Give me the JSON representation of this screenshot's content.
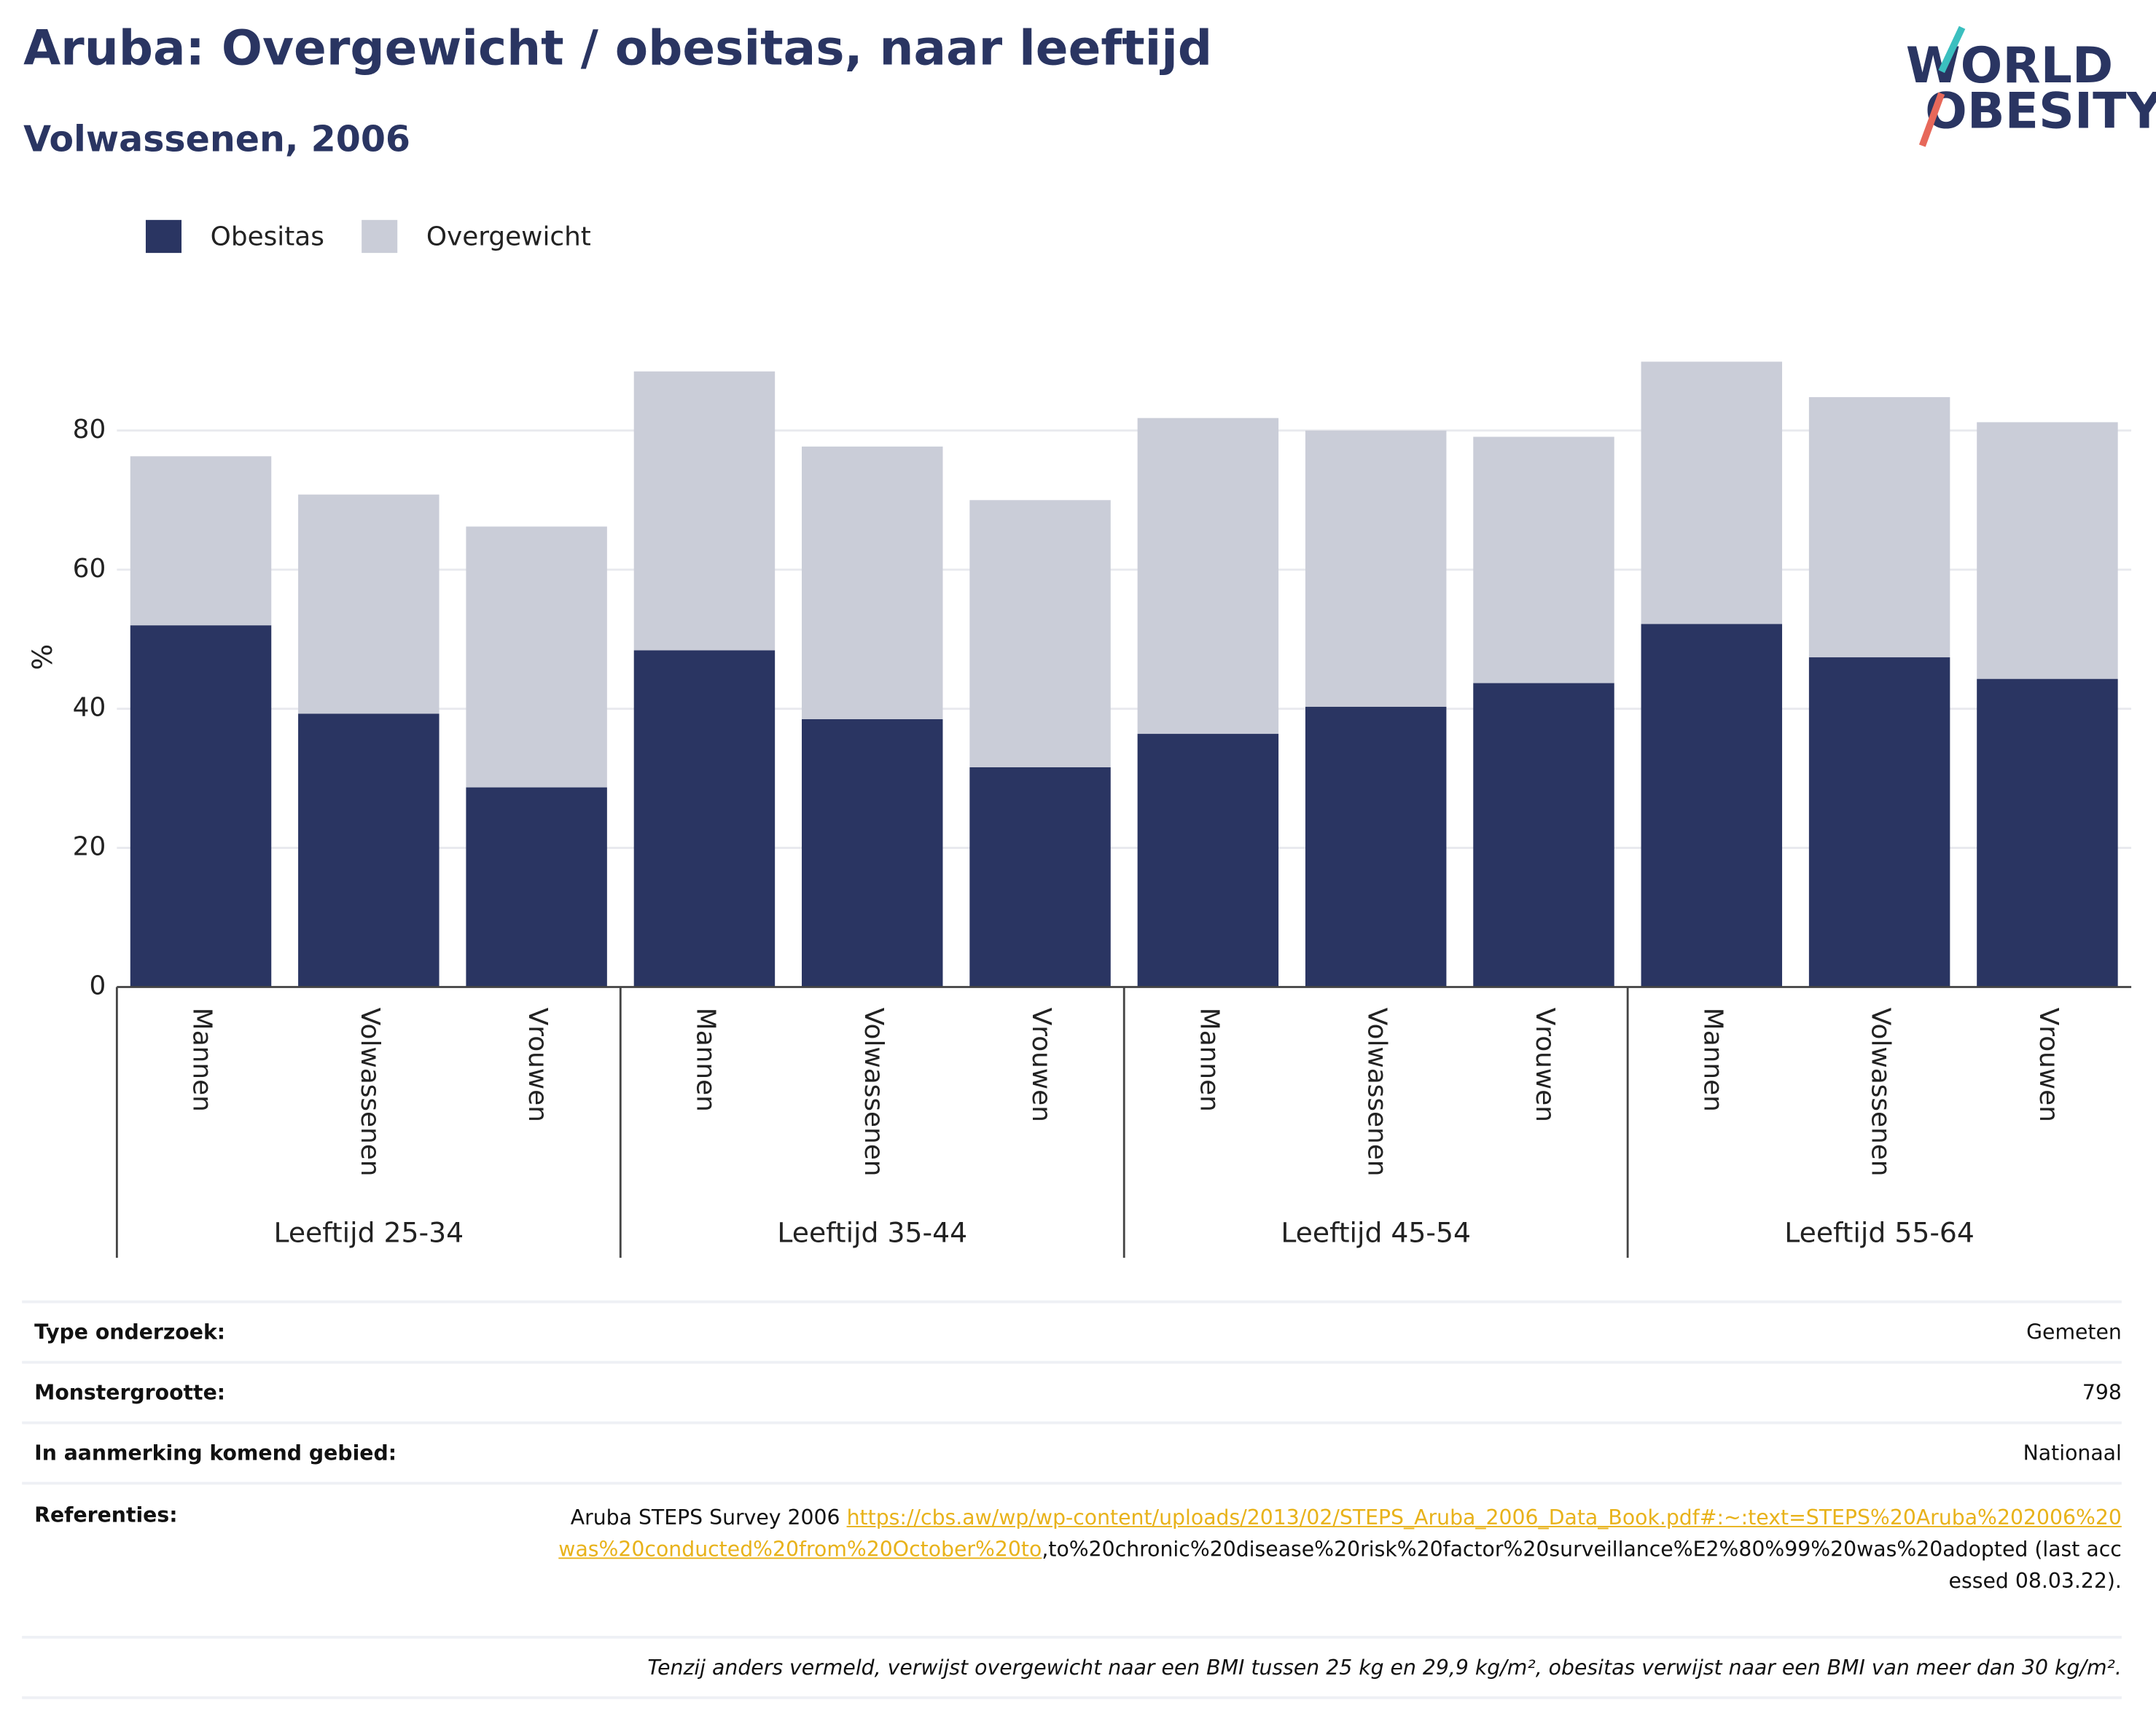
{
  "chart_data": {
    "type": "stacked_bar",
    "title": "Aruba: Overgewicht / obesitas, naar leeftijd",
    "subtitle": "Volwassenen, 2006",
    "y_label": "%",
    "groups": [
      {
        "name": "Leeftijd 25-34",
        "categories": [
          "Mannen",
          "Volwassenen",
          "Vrouwen"
        ]
      },
      {
        "name": "Leeftijd 35-44",
        "categories": [
          "Mannen",
          "Volwassenen",
          "Vrouwen"
        ]
      },
      {
        "name": "Leeftijd 45-54",
        "categories": [
          "Mannen",
          "Volwassenen",
          "Vrouwen"
        ]
      },
      {
        "name": "Leeftijd 55-64",
        "categories": [
          "Mannen",
          "Volwassenen",
          "Vrouwen"
        ]
      }
    ],
    "series": [
      {
        "name": "Obesitas",
        "color": "#2a3562",
        "values": [
          52.0,
          39.3,
          28.7,
          48.4,
          38.5,
          31.6,
          36.4,
          40.3,
          43.7,
          52.2,
          47.4,
          44.3
        ]
      },
      {
        "name": "Overgewicht",
        "color": "#cacdd8",
        "values": [
          24.3,
          31.5,
          37.5,
          40.1,
          39.2,
          38.4,
          45.4,
          39.7,
          35.4,
          37.7,
          37.4,
          36.9
        ]
      }
    ],
    "ylim": [
      0,
      92
    ],
    "yticks": [
      0,
      20,
      40,
      60,
      80
    ],
    "grid": true,
    "legend": "top-left"
  },
  "logo": {
    "line1": "WORLD",
    "line2": "OBESITY"
  },
  "details": {
    "rows": [
      {
        "label": "Type onderzoek:",
        "value": "Gemeten"
      },
      {
        "label": "Monstergrootte:",
        "value": "798"
      },
      {
        "label": "In aanmerking komend gebied:",
        "value": "Nationaal"
      }
    ],
    "references": {
      "label": "Referenties:",
      "text": "Aruba STEPS Survey 2006 ",
      "link": "https://cbs.aw/wp/wp-content/uploads/2013/02/STEPS_Aruba_2006_Data_Book.pdf#:~:text=STEPS%20Aruba%202006%20was%20conducted%20from%20October%20to",
      "after": ",to%20chronic%20disease%20risk%20factor%20surveillance%E2%80%99%20was%20adopted (last accessed 08.03.22)."
    },
    "footnote": "Tenzij anders vermeld, verwijst overgewicht naar een BMI tussen 25 kg en 29,9 kg/m², obesitas verwijst naar een BMI van meer dan 30 kg/m²."
  }
}
